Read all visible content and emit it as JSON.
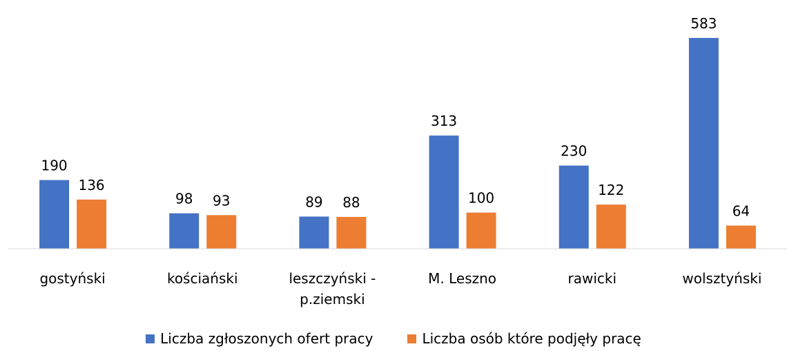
{
  "chart_data": {
    "type": "bar",
    "categories": [
      "gostyński",
      "kościański",
      "leszczyński - p.ziemski",
      "M. Leszno",
      "rawicki",
      "wolsztyński"
    ],
    "series": [
      {
        "name": "Liczba zgłoszonych ofert pracy",
        "color": "#4472c4",
        "values": [
          190,
          98,
          89,
          313,
          230,
          583
        ]
      },
      {
        "name": "Liczba osób które podjęły pracę",
        "color": "#ed7d31",
        "values": [
          136,
          93,
          88,
          100,
          122,
          64
        ]
      }
    ],
    "ylim": [
      0,
      600
    ],
    "legend": "bottom"
  }
}
